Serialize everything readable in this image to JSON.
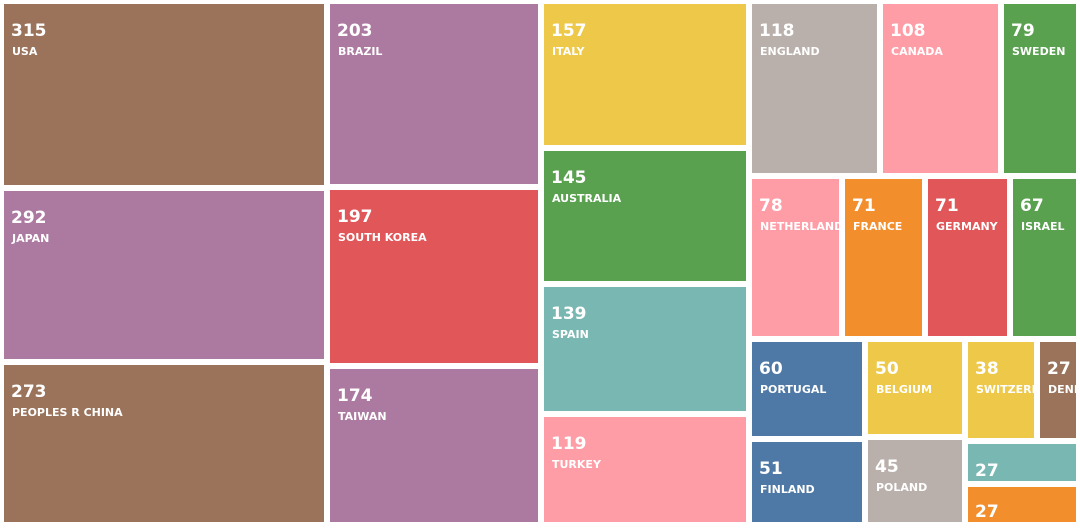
{
  "chart_data": {
    "type": "treemap",
    "title": "",
    "items": [
      {
        "label": "USA",
        "value": 315,
        "color": "#9a735a"
      },
      {
        "label": "JAPAN",
        "value": 292,
        "color": "#ac79a0"
      },
      {
        "label": "PEOPLES R CHINA",
        "value": 273,
        "color": "#9a735a"
      },
      {
        "label": "BRAZIL",
        "value": 203,
        "color": "#ac79a0"
      },
      {
        "label": "SOUTH KOREA",
        "value": 197,
        "color": "#e15659"
      },
      {
        "label": "TAIWAN",
        "value": 174,
        "color": "#ac79a0"
      },
      {
        "label": "ITALY",
        "value": 157,
        "color": "#edc849"
      },
      {
        "label": "AUSTRALIA",
        "value": 145,
        "color": "#59a04f"
      },
      {
        "label": "SPAIN",
        "value": 139,
        "color": "#78b7b2"
      },
      {
        "label": "TURKEY",
        "value": 119,
        "color": "#ff9da7"
      },
      {
        "label": "ENGLAND",
        "value": 118,
        "color": "#bab0ab"
      },
      {
        "label": "CANADA",
        "value": 108,
        "color": "#ff9da7"
      },
      {
        "label": "SWEDEN",
        "value": 79,
        "color": "#59a04f"
      },
      {
        "label": "NETHERLANDS",
        "value": 78,
        "color": "#ff9da7"
      },
      {
        "label": "FRANCE",
        "value": 71,
        "color": "#f28e2c"
      },
      {
        "label": "GERMANY",
        "value": 71,
        "color": "#e15659"
      },
      {
        "label": "ISRAEL",
        "value": 67,
        "color": "#59a04f"
      },
      {
        "label": "PORTUGAL",
        "value": 60,
        "color": "#4e79a6"
      },
      {
        "label": "BELGIUM",
        "value": 50,
        "color": "#edc849"
      },
      {
        "label": "SWITZERLAND",
        "value": 38,
        "color": "#edc849"
      },
      {
        "label": "DENMARK",
        "value": 27,
        "color": "#9a735a"
      },
      {
        "label": "FINLAND",
        "value": 51,
        "color": "#4e79a6"
      },
      {
        "label": "POLAND",
        "value": 45,
        "color": "#bab0ab"
      },
      {
        "label": "",
        "value": 27,
        "color": "#78b7b2"
      },
      {
        "label": "",
        "value": 27,
        "color": "#f28e2c"
      }
    ]
  }
}
